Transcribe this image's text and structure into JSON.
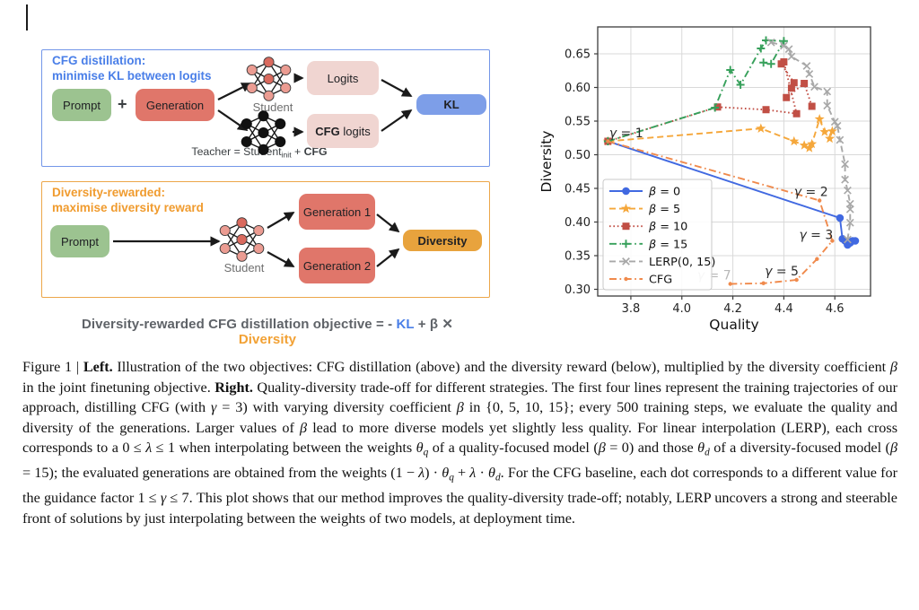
{
  "cfg_panel": {
    "title": "CFG distillation:\nminimise KL between logits",
    "prompt": "Prompt",
    "plus": "+",
    "generation": "Generation",
    "student_label": "Student",
    "teacher_segments": [
      {
        "t": "Teacher = Student"
      },
      {
        "t": "init",
        "sub": true
      },
      {
        "t": " + "
      },
      {
        "t": "CFG",
        "b": true
      }
    ],
    "logits": "Logits",
    "cfg_logits_segments": [
      {
        "t": "CFG",
        "b": true
      },
      {
        "t": " logits"
      }
    ],
    "kl": "KL"
  },
  "diversity_panel": {
    "title": "Diversity-rewarded:\nmaximise diversity reward",
    "prompt": "Prompt",
    "student_label": "Student",
    "generation1": "Generation 1",
    "generation2": "Generation 2",
    "diversity": "Diversity"
  },
  "formula_segments": [
    {
      "t": "Diversity-rewarded CFG distillation objective  = - ",
      "color": "#5f6368"
    },
    {
      "t": "KL",
      "color": "#4a7fe8"
    },
    {
      "t": " + β ✕ ",
      "color": "#5f6368"
    },
    {
      "t": "Diversity",
      "color": "#f2a134"
    }
  ],
  "colors": {
    "prompt_box": "#9cc390",
    "generation_box": "#e0766a",
    "logits_box": "#f0d5d1",
    "kl_box": "#7d9ee8",
    "diversity_box": "#e8a33d",
    "cfg_panel_border": "#7396e8",
    "diversity_panel_border": "#eca649"
  },
  "chart_data": {
    "type": "line",
    "xlabel": "Quality",
    "ylabel": "Diversity",
    "xlim": [
      3.67,
      4.74
    ],
    "ylim": [
      0.29,
      0.69
    ],
    "xticks": [
      [
        3.8,
        "3.8"
      ],
      [
        4.0,
        "4.0"
      ],
      [
        4.2,
        "4.2"
      ],
      [
        4.4,
        "4.4"
      ],
      [
        4.6,
        "4.6"
      ]
    ],
    "yticks": [
      [
        0.3,
        "0.30"
      ],
      [
        0.35,
        "0.35"
      ],
      [
        0.4,
        "0.40"
      ],
      [
        0.45,
        "0.45"
      ],
      [
        0.5,
        "0.50"
      ],
      [
        0.55,
        "0.55"
      ],
      [
        0.6,
        "0.60"
      ],
      [
        0.65,
        "0.65"
      ]
    ],
    "grid": true,
    "legend_position": "lower left",
    "series": [
      {
        "name": "β = 0",
        "color": "#4169e1",
        "line": "solid",
        "marker": "circle",
        "points": [
          [
            3.71,
            0.52
          ],
          [
            4.62,
            0.406
          ],
          [
            4.63,
            0.375
          ],
          [
            4.64,
            0.372
          ],
          [
            4.65,
            0.37
          ],
          [
            4.66,
            0.371
          ],
          [
            4.67,
            0.372
          ],
          [
            4.68,
            0.372
          ],
          [
            4.65,
            0.366
          ],
          [
            4.66,
            0.369
          ]
        ]
      },
      {
        "name": "β = 5",
        "color": "#f5a73b",
        "line": "dashed",
        "marker": "star",
        "points": [
          [
            3.71,
            0.52
          ],
          [
            4.31,
            0.539
          ],
          [
            4.44,
            0.52
          ],
          [
            4.48,
            0.514
          ],
          [
            4.5,
            0.51
          ],
          [
            4.51,
            0.516
          ],
          [
            4.54,
            0.553
          ],
          [
            4.56,
            0.534
          ],
          [
            4.59,
            0.535
          ],
          [
            4.58,
            0.524
          ]
        ]
      },
      {
        "name": "β = 10",
        "color": "#c14f45",
        "line": "dotted",
        "marker": "square",
        "points": [
          [
            3.71,
            0.52
          ],
          [
            4.14,
            0.571
          ],
          [
            4.33,
            0.567
          ],
          [
            4.45,
            0.561
          ],
          [
            4.4,
            0.638
          ],
          [
            4.39,
            0.635
          ],
          [
            4.44,
            0.607
          ],
          [
            4.43,
            0.599
          ],
          [
            4.41,
            0.585
          ],
          [
            4.48,
            0.606
          ],
          [
            4.51,
            0.572
          ]
        ]
      },
      {
        "name": "β = 15",
        "color": "#37a05b",
        "line": "dashdot",
        "marker": "plus",
        "points": [
          [
            3.71,
            0.52
          ],
          [
            4.13,
            0.57
          ],
          [
            4.19,
            0.626
          ],
          [
            4.23,
            0.604
          ],
          [
            4.31,
            0.658
          ],
          [
            4.33,
            0.67
          ],
          [
            4.4,
            0.669
          ],
          [
            4.35,
            0.635
          ],
          [
            4.32,
            0.637
          ]
        ]
      },
      {
        "name": "LERP(0, 15)",
        "color": "#a8a8a8",
        "line": "dashed",
        "marker": "x",
        "points": [
          [
            4.35,
            0.667
          ],
          [
            4.4,
            0.662
          ],
          [
            4.42,
            0.657
          ],
          [
            4.43,
            0.646
          ],
          [
            4.49,
            0.632
          ],
          [
            4.5,
            0.62
          ],
          [
            4.52,
            0.601
          ],
          [
            4.57,
            0.594
          ],
          [
            4.57,
            0.573
          ],
          [
            4.6,
            0.549
          ],
          [
            4.61,
            0.543
          ],
          [
            4.62,
            0.522
          ],
          [
            4.64,
            0.486
          ],
          [
            4.64,
            0.463
          ],
          [
            4.65,
            0.447
          ],
          [
            4.66,
            0.427
          ],
          [
            4.66,
            0.419
          ],
          [
            4.66,
            0.399
          ],
          [
            4.65,
            0.374
          ]
        ]
      },
      {
        "name": "CFG",
        "color": "#f08a4c",
        "line": "dashdot",
        "marker": "dot",
        "gammas": [
          1,
          2,
          3,
          4,
          5,
          6,
          7
        ],
        "points": [
          [
            3.71,
            0.52
          ],
          [
            4.54,
            0.432
          ],
          [
            4.59,
            0.372
          ],
          [
            4.53,
            0.345
          ],
          [
            4.45,
            0.314
          ],
          [
            4.32,
            0.309
          ],
          [
            4.19,
            0.308
          ]
        ]
      }
    ],
    "annotations": [
      {
        "text": "γ = 1",
        "x": 3.715,
        "y": 0.526,
        "color": "#2b2b2b"
      },
      {
        "text": "γ = 2",
        "x": 4.44,
        "y": 0.439,
        "color": "#2b2b2b"
      },
      {
        "text": "γ = 3",
        "x": 4.46,
        "y": 0.375,
        "color": "#2b2b2b"
      },
      {
        "text": "γ = 5",
        "x": 4.325,
        "y": 0.321,
        "color": "#2b2b2b"
      },
      {
        "text": "γ = 7",
        "x": 4.06,
        "y": 0.315,
        "color": "#b8b8b8"
      }
    ]
  },
  "caption_segments": [
    {
      "t": "Figure 1 | "
    },
    {
      "t": "Left.",
      "b": true
    },
    {
      "t": " Illustration of the two objectives: CFG distillation (above) and the diversity reward (below), multiplied by the diversity coefficient "
    },
    {
      "t": "β",
      "i": true
    },
    {
      "t": " in the joint finetuning objective. "
    },
    {
      "t": "Right.",
      "b": true
    },
    {
      "t": " Quality-diversity trade-off for different strategies. The first four lines represent the training trajectories of our approach, distilling CFG (with "
    },
    {
      "t": "γ",
      "i": true
    },
    {
      "t": " = 3) with varying diversity coefficient "
    },
    {
      "t": "β",
      "i": true
    },
    {
      "t": " in {0, 5, 10, 15}; every 500 training steps, we evaluate the quality and diversity of the generations. Larger values of "
    },
    {
      "t": "β",
      "i": true
    },
    {
      "t": " lead to more diverse models yet slightly less quality. For linear interpolation (LERP), each cross corresponds to a 0 ≤ "
    },
    {
      "t": "λ",
      "i": true
    },
    {
      "t": " ≤ 1 when interpolating between the weights "
    },
    {
      "t": "θ",
      "i": true
    },
    {
      "t": "q",
      "i": true,
      "sub": true
    },
    {
      "t": " of a quality-focused model ("
    },
    {
      "t": "β",
      "i": true
    },
    {
      "t": " = 0) and those "
    },
    {
      "t": "θ",
      "i": true
    },
    {
      "t": "d",
      "i": true,
      "sub": true
    },
    {
      "t": " of a diversity-focused model ("
    },
    {
      "t": "β",
      "i": true
    },
    {
      "t": " = 15); the evaluated generations are obtained from the weights (1 − "
    },
    {
      "t": "λ",
      "i": true
    },
    {
      "t": ") · "
    },
    {
      "t": "θ",
      "i": true
    },
    {
      "t": "q",
      "i": true,
      "sub": true
    },
    {
      "t": " + "
    },
    {
      "t": "λ",
      "i": true
    },
    {
      "t": " · "
    },
    {
      "t": "θ",
      "i": true
    },
    {
      "t": "d",
      "i": true,
      "sub": true
    },
    {
      "t": ". For the CFG baseline, each dot corresponds to a different value for the guidance factor 1 ≤ "
    },
    {
      "t": "γ",
      "i": true
    },
    {
      "t": " ≤ 7. This plot shows that our method improves the quality-diversity trade-off; notably, LERP uncovers a strong and steerable front of solutions by just interpolating between the weights of two models, at deployment time."
    }
  ]
}
